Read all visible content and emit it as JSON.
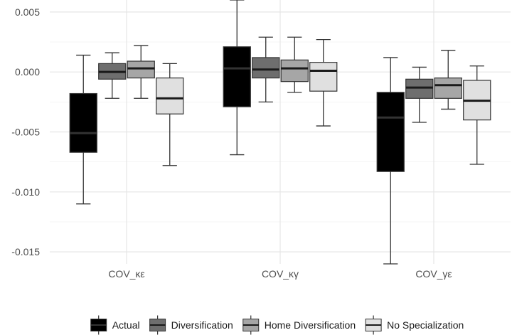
{
  "chart_data": {
    "type": "boxplot",
    "title": "",
    "xlabel": "",
    "ylabel": "",
    "ylim": [
      -0.016,
      0.006
    ],
    "y_ticks": [
      {
        "value": 0.005,
        "label": "0.005"
      },
      {
        "value": 0.0,
        "label": "0.000"
      },
      {
        "value": -0.005,
        "label": "-0.005"
      },
      {
        "value": -0.01,
        "label": "-0.010"
      },
      {
        "value": -0.015,
        "label": "-0.015"
      }
    ],
    "categories": [
      "COV_κε",
      "COV_κγ",
      "COV_γε"
    ],
    "grid": true,
    "legend_position": "bottom",
    "series": [
      {
        "name": "Actual",
        "color": "#000000",
        "median_color": "#333333",
        "boxes": [
          {
            "min": -0.011,
            "q1": -0.0067,
            "median": -0.0051,
            "q3": -0.0018,
            "max": 0.0014
          },
          {
            "min": -0.0069,
            "q1": -0.0029,
            "median": 0.0003,
            "q3": 0.0021,
            "max": 0.006
          },
          {
            "min": -0.016,
            "q1": -0.0083,
            "median": -0.0038,
            "q3": -0.0017,
            "max": 0.0012
          }
        ]
      },
      {
        "name": "Diversification",
        "color": "#6e6e6e",
        "median_color": "#1a1a1a",
        "boxes": [
          {
            "min": -0.0022,
            "q1": -0.0006,
            "median": 0.0,
            "q3": 0.0007,
            "max": 0.0016
          },
          {
            "min": -0.0025,
            "q1": -0.0005,
            "median": 0.0002,
            "q3": 0.0012,
            "max": 0.0029
          },
          {
            "min": -0.0042,
            "q1": -0.0022,
            "median": -0.0013,
            "q3": -0.0006,
            "max": 0.0004
          }
        ]
      },
      {
        "name": "Home Diversification",
        "color": "#a6a6a6",
        "median_color": "#1a1a1a",
        "boxes": [
          {
            "min": -0.0022,
            "q1": -0.0005,
            "median": 0.0003,
            "q3": 0.0009,
            "max": 0.0022
          },
          {
            "min": -0.0017,
            "q1": -0.0008,
            "median": 0.0003,
            "q3": 0.001,
            "max": 0.0029
          },
          {
            "min": -0.0031,
            "q1": -0.0022,
            "median": -0.0011,
            "q3": -0.0005,
            "max": 0.0018
          }
        ]
      },
      {
        "name": "No Specialization",
        "color": "#e0e0e0",
        "median_color": "#1a1a1a",
        "boxes": [
          {
            "min": -0.0078,
            "q1": -0.0035,
            "median": -0.0022,
            "q3": -0.0005,
            "max": 0.0007
          },
          {
            "min": -0.0045,
            "q1": -0.0016,
            "median": 0.0001,
            "q3": 0.0008,
            "max": 0.0027
          },
          {
            "min": -0.0077,
            "q1": -0.004,
            "median": -0.0024,
            "q3": -0.0007,
            "max": 0.0005
          }
        ]
      }
    ]
  }
}
